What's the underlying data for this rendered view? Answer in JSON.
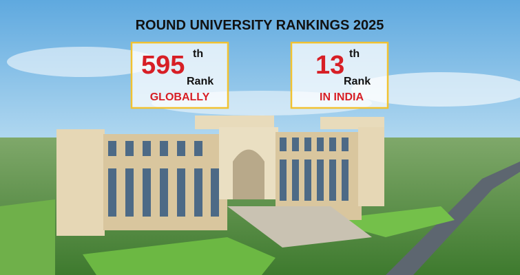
{
  "banner": {
    "title": "ROUND UNIVERSITY RANKINGS 2025",
    "ranks": [
      {
        "number": "595",
        "suffix": "th",
        "label": "Rank",
        "scope": "GLOBALLY"
      },
      {
        "number": "13",
        "suffix": "th",
        "label": "Rank",
        "scope": "IN INDIA"
      }
    ]
  }
}
